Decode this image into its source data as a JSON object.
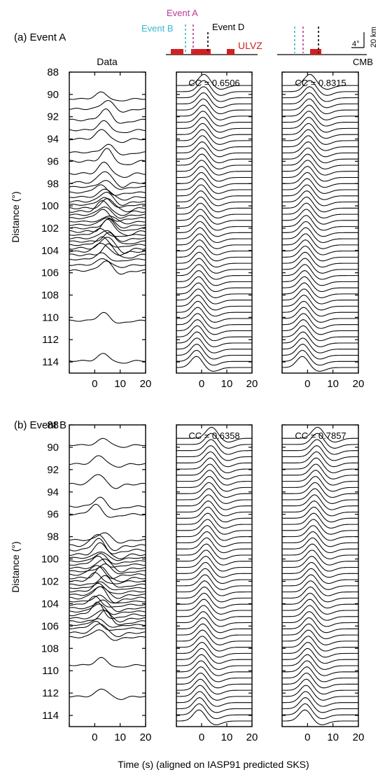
{
  "chart_data": [
    {
      "type": "line",
      "panel_label": "(a) Event A",
      "xlabel": "Time (s) (aligned on IASP91 predicted SKS)",
      "ylabel": "Distance (°)",
      "xlim": [
        -10,
        20
      ],
      "ylim": [
        88,
        115
      ],
      "x_ticks": [
        "0",
        "10",
        "20"
      ],
      "y_ticks": [
        "88",
        "90",
        "92",
        "94",
        "96",
        "98",
        "100",
        "102",
        "104",
        "106",
        "108",
        "110",
        "112",
        "114"
      ],
      "columns": [
        {
          "title": "Data",
          "cc": "",
          "kind": "data",
          "series_distances": [
            90.4,
            91.3,
            92.3,
            93.2,
            94.0,
            95.2,
            96.0,
            97.1,
            97.9,
            98.3,
            98.8,
            99.2,
            99.6,
            99.9,
            100.2,
            100.5,
            100.8,
            101.1,
            101.4,
            101.7,
            102.0,
            102.3,
            102.6,
            102.9,
            103.2,
            103.5,
            103.8,
            104.1,
            104.4,
            104.8,
            105.3,
            105.8,
            110.3,
            113.9
          ],
          "peak_time_s": 4
        },
        {
          "title": "",
          "cc": "CC = 0.6506",
          "kind": "synthetic",
          "distance_range": [
            89.2,
            114.6
          ],
          "trace_spacing_deg": 0.55,
          "peak_time_start_s": 1,
          "peak_time_end_s": -2
        },
        {
          "title": "",
          "cc": "CC = 0.8315",
          "kind": "synthetic",
          "distance_range": [
            89.2,
            114.6
          ],
          "trace_spacing_deg": 0.55,
          "peak_time_start_s": 1,
          "peak_time_end_s": -2
        }
      ]
    },
    {
      "type": "line",
      "panel_label": "(b) Event B",
      "xlabel": "Time (s) (aligned on IASP91 predicted SKS)",
      "ylabel": "Distance (°)",
      "xlim": [
        -10,
        20
      ],
      "ylim": [
        88,
        115
      ],
      "x_ticks": [
        "0",
        "10",
        "20"
      ],
      "y_ticks": [
        "88",
        "90",
        "92",
        "94",
        "96",
        "98",
        "100",
        "102",
        "104",
        "106",
        "108",
        "110",
        "112",
        "114"
      ],
      "columns": [
        {
          "title": "",
          "cc": "",
          "kind": "data",
          "series_distances": [
            89.8,
            91.5,
            93.3,
            95.3,
            96.0,
            98.3,
            98.8,
            99.2,
            99.6,
            99.9,
            100.2,
            100.5,
            100.8,
            101.1,
            101.4,
            101.7,
            102.0,
            102.3,
            102.6,
            102.9,
            103.2,
            103.5,
            103.8,
            104.1,
            104.4,
            104.7,
            105.0,
            105.3,
            105.6,
            105.9,
            106.2,
            106.6,
            107.0,
            109.5,
            112.3
          ],
          "peak_time_s": 2
        },
        {
          "title": "",
          "cc": "CC = 0.6358",
          "kind": "synthetic",
          "distance_range": [
            89.2,
            114.6
          ],
          "trace_spacing_deg": 0.55,
          "peak_time_start_s": 4,
          "peak_time_end_s": -1
        },
        {
          "title": "",
          "cc": "CC = 0.7857",
          "kind": "synthetic",
          "distance_range": [
            89.2,
            114.6
          ],
          "trace_spacing_deg": 0.55,
          "peak_time_start_s": 4,
          "peak_time_end_s": -1
        }
      ]
    }
  ],
  "schematic": {
    "event_b": "Event B",
    "event_a": "Event A",
    "event_d": "Event D",
    "ulvz": "ULVZ",
    "cmb": "CMB",
    "scale_deg": "4°",
    "scale_km": "20 km",
    "colors": {
      "event_b": "#39b8d0",
      "event_a": "#b83a98",
      "event_d": "#000000",
      "ulvz": "#d22020"
    }
  }
}
